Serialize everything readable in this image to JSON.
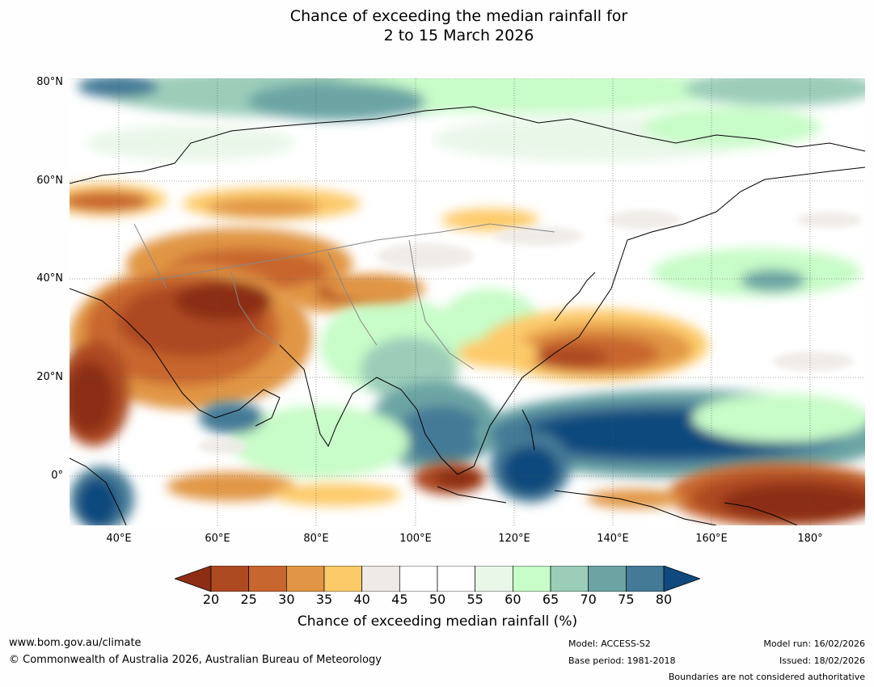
{
  "title": {
    "line1": "Chance of exceeding the median rainfall for",
    "line2": "2 to 15 March 2026"
  },
  "map": {
    "lat_labels": [
      "80°N",
      "60°N",
      "40°N",
      "20°N",
      "0°"
    ],
    "lon_labels": [
      "40°E",
      "60°E",
      "80°E",
      "100°E",
      "120°E",
      "140°E",
      "160°E",
      "180°"
    ],
    "extent": {
      "lon_min": 30,
      "lon_max": 191,
      "lat_min": -10,
      "lat_max": 80
    }
  },
  "colorbar": {
    "ticks": [
      "20",
      "25",
      "30",
      "35",
      "40",
      "45",
      "50",
      "55",
      "60",
      "65",
      "70",
      "75",
      "80"
    ],
    "colors": [
      "#8c2d14",
      "#ad4a22",
      "#c8662f",
      "#e19645",
      "#fdca6a",
      "#eeeae6",
      "#ffffff",
      "#ffffff",
      "#e9f7e9",
      "#c8fcc8",
      "#9bcdb9",
      "#6ca4a4",
      "#447a96",
      "#10497d"
    ],
    "label": "Chance of exceeding median rainfall (%)"
  },
  "footer": {
    "website": "www.bom.gov.au/climate",
    "copyright": "© Commonwealth of Australia 2026, Australian Bureau of Meteorology",
    "model": "Model: ACCESS-S2",
    "base_period": "Base period: 1981-2018",
    "model_run": "Model run: 16/02/2026",
    "issued": "Issued: 18/02/2026",
    "boundaries_note": "Boundaries are not considered authoritative"
  }
}
